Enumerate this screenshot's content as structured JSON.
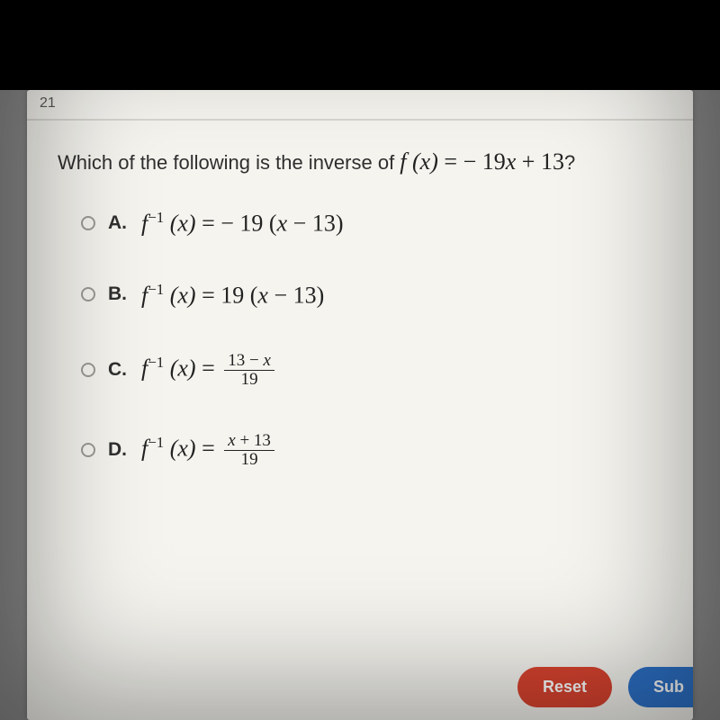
{
  "colors": {
    "background": "#8a8a8a",
    "page_bg": "#f5f4ef",
    "black_bar": "#000000",
    "text": "#2f2f2f",
    "radio_border": "#9a9a94",
    "divider": "#d8d7d1",
    "reset_bg": "#d8432f",
    "submit_bg": "#2d72c9",
    "button_text": "#ffffff"
  },
  "question_number": "21",
  "question": {
    "prefix": "Which of the following is the inverse of ",
    "func_lhs": "f (x)",
    "eq": " = ",
    "rhs_minus": " − ",
    "rhs_coeff": "19",
    "rhs_var": "x",
    "rhs_plus": " + ",
    "rhs_const": "13",
    "suffix": "?"
  },
  "inverse": {
    "f": "f",
    "exp": "−1",
    "arg": " (x)",
    "eq": "  =  "
  },
  "choices": [
    {
      "letter": "A.",
      "type": "linear",
      "sign": " − ",
      "coeff": "19",
      "open": " (",
      "var": "x",
      "mid": "  −  ",
      "const": "13",
      "close": ")"
    },
    {
      "letter": "B.",
      "type": "linear",
      "sign": "",
      "coeff": "19",
      "open": " (",
      "var": "x",
      "mid": "  −  ",
      "const": "13",
      "close": ")"
    },
    {
      "letter": "C.",
      "type": "fraction",
      "num_a": "13",
      "num_op": " − ",
      "num_b": "x",
      "den": "19"
    },
    {
      "letter": "D.",
      "type": "fraction",
      "num_a": "x",
      "num_op": " + ",
      "num_b": "13",
      "den": "19"
    }
  ],
  "buttons": {
    "reset": "Reset",
    "submit": "Sub"
  }
}
